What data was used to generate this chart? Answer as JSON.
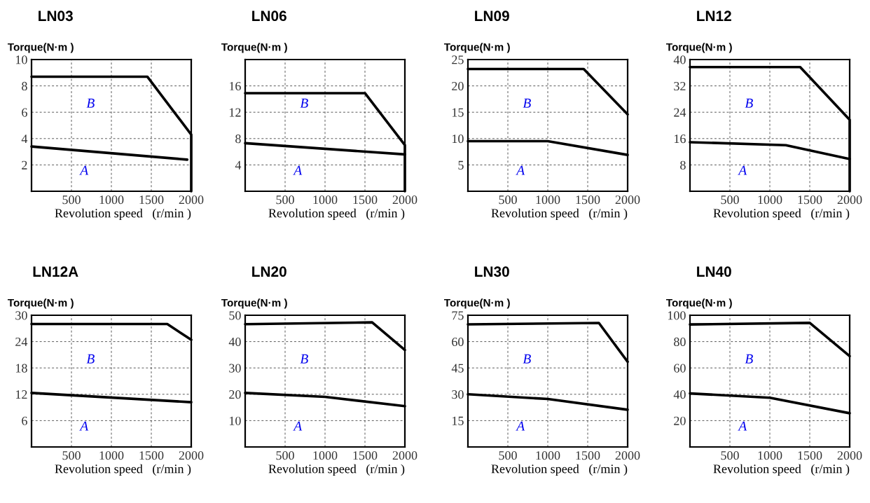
{
  "chart_data": [
    {
      "type": "line",
      "title": "LN03",
      "ylabel": "Torque(N·m )",
      "xlabel": "Revolution speed   (r/min )",
      "xlim": [
        0,
        2000
      ],
      "xticks": [
        500,
        1000,
        1500,
        2000
      ],
      "ylim": [
        0,
        10
      ],
      "yticks": [
        2,
        4,
        6,
        8,
        10
      ],
      "grid": true,
      "color": "#000000",
      "series": [
        {
          "x": [
            0,
            1450,
            2000,
            2000
          ],
          "values": [
            8.7,
            8.7,
            4.3,
            0
          ]
        },
        {
          "x": [
            0,
            1950
          ],
          "values": [
            3.4,
            2.4
          ]
        }
      ],
      "annotations": [
        "B",
        "A"
      ]
    },
    {
      "type": "line",
      "title": "LN06",
      "ylabel": "Torque(N·m )",
      "xlabel": "Revolution speed   (r/min )",
      "xlim": [
        0,
        2000
      ],
      "xticks": [
        500,
        1000,
        1500,
        2000
      ],
      "ylim": [
        0,
        20
      ],
      "yticks": [
        4,
        8,
        12,
        16
      ],
      "grid": true,
      "color": "#000000",
      "series": [
        {
          "x": [
            0,
            1500,
            2000,
            2000
          ],
          "values": [
            14.9,
            14.9,
            7,
            0
          ]
        },
        {
          "x": [
            0,
            2000
          ],
          "values": [
            7.3,
            5.6
          ]
        }
      ],
      "annotations": [
        "B",
        "A"
      ]
    },
    {
      "type": "line",
      "title": "LN09",
      "ylabel": "Torque(N·m )",
      "xlabel": "Revolution speed   (r/min )",
      "xlim": [
        0,
        2000
      ],
      "xticks": [
        500,
        1000,
        1500,
        2000
      ],
      "ylim": [
        0,
        25
      ],
      "yticks": [
        5,
        10,
        15,
        20,
        25
      ],
      "grid": true,
      "color": "#000000",
      "series": [
        {
          "x": [
            0,
            1450,
            2000
          ],
          "values": [
            23.2,
            23.2,
            14.6
          ]
        },
        {
          "x": [
            0,
            1000,
            2000
          ],
          "values": [
            9.5,
            9.5,
            6.9
          ]
        }
      ],
      "annotations": [
        "B",
        "A"
      ]
    },
    {
      "type": "line",
      "title": "LN12",
      "ylabel": "Torque(N·m )",
      "xlabel": "Revolution speed   (r/min )",
      "xlim": [
        0,
        2000
      ],
      "xticks": [
        500,
        1000,
        1500,
        2000
      ],
      "ylim": [
        0,
        40
      ],
      "yticks": [
        8,
        16,
        24,
        32,
        40
      ],
      "grid": true,
      "color": "#000000",
      "series": [
        {
          "x": [
            0,
            1380,
            2000,
            2000
          ],
          "values": [
            37.7,
            37.7,
            21.7,
            0
          ]
        },
        {
          "x": [
            0,
            1200,
            2000
          ],
          "values": [
            14.9,
            14,
            9.8
          ]
        }
      ],
      "annotations": [
        "B",
        "A"
      ]
    },
    {
      "type": "line",
      "title": "LN12A",
      "ylabel": "Torque(N·m )",
      "xlabel": "Revolution speed   (r/min )",
      "xlim": [
        0,
        2000
      ],
      "xticks": [
        500,
        1000,
        1500,
        2000
      ],
      "ylim": [
        0,
        30
      ],
      "yticks": [
        6,
        12,
        18,
        24,
        30
      ],
      "grid": true,
      "color": "#000000",
      "series": [
        {
          "x": [
            0,
            1700,
            2000
          ],
          "values": [
            28,
            28,
            24.4
          ]
        },
        {
          "x": [
            0,
            2000
          ],
          "values": [
            12.3,
            10.2
          ]
        }
      ],
      "annotations": [
        "B",
        "A"
      ]
    },
    {
      "type": "line",
      "title": "LN20",
      "ylabel": "Torque(N·m )",
      "xlabel": "Revolution speed   (r/min )",
      "xlim": [
        0,
        2000
      ],
      "xticks": [
        500,
        1000,
        1500,
        2000
      ],
      "ylim": [
        0,
        50
      ],
      "yticks": [
        10,
        20,
        30,
        40,
        50
      ],
      "grid": true,
      "color": "#000000",
      "series": [
        {
          "x": [
            0,
            1590,
            2000
          ],
          "values": [
            46.6,
            47.3,
            36.8
          ]
        },
        {
          "x": [
            0,
            1000,
            2000
          ],
          "values": [
            20.5,
            19,
            15.5
          ]
        }
      ],
      "annotations": [
        "B",
        "A"
      ]
    },
    {
      "type": "line",
      "title": "LN30",
      "ylabel": "Torque(N·m )",
      "xlabel": "Revolution speed   (r/min )",
      "xlim": [
        0,
        2000
      ],
      "xticks": [
        500,
        1000,
        1500,
        2000
      ],
      "ylim": [
        0,
        75
      ],
      "yticks": [
        15,
        30,
        45,
        60,
        75
      ],
      "grid": true,
      "color": "#000000",
      "series": [
        {
          "x": [
            0,
            1640,
            2000
          ],
          "values": [
            69.8,
            70.6,
            48.5
          ]
        },
        {
          "x": [
            0,
            1000,
            2000
          ],
          "values": [
            30,
            27.3,
            21.2
          ]
        }
      ],
      "annotations": [
        "B",
        "A"
      ]
    },
    {
      "type": "line",
      "title": "LN40",
      "ylabel": "Torque(N·m )",
      "xlabel": "Revolution speed   (r/min )",
      "xlim": [
        0,
        2000
      ],
      "xticks": [
        500,
        1000,
        1500,
        2000
      ],
      "ylim": [
        0,
        100
      ],
      "yticks": [
        20,
        40,
        60,
        80,
        100
      ],
      "grid": true,
      "color": "#000000",
      "series": [
        {
          "x": [
            0,
            1500,
            2000
          ],
          "values": [
            93,
            94.2,
            69
          ]
        },
        {
          "x": [
            0,
            1000,
            2000
          ],
          "values": [
            40.6,
            37.4,
            25.6
          ]
        }
      ],
      "annotations": [
        "B",
        "A"
      ]
    }
  ]
}
